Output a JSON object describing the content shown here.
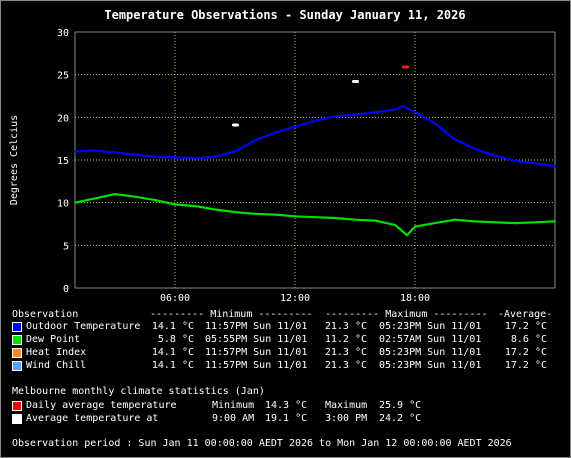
{
  "chart_data": {
    "type": "line",
    "title": "Temperature Observations - Sunday January 11, 2026",
    "ylabel": "Degrees Celcius",
    "xlabel": "",
    "ylim": [
      0,
      30
    ],
    "yticks": [
      0,
      5,
      10,
      15,
      20,
      25,
      30
    ],
    "x_unit": "hours",
    "xlim": [
      1,
      25
    ],
    "xtick_values": [
      6,
      12,
      18
    ],
    "xticks": [
      "06:00",
      "12:00",
      "18:00"
    ],
    "grid": true,
    "series": [
      {
        "name": "Outdoor Temperature",
        "color": "#0000ff",
        "x": [
          1,
          2,
          3,
          4,
          5,
          6,
          7,
          8,
          9,
          10,
          11,
          12,
          13,
          14,
          15,
          16,
          17,
          17.4,
          18,
          19,
          20,
          21,
          22,
          23,
          24,
          25
        ],
        "values": [
          16.0,
          16.1,
          15.9,
          15.6,
          15.4,
          15.3,
          15.2,
          15.4,
          16.0,
          17.3,
          18.2,
          18.9,
          19.6,
          20.1,
          20.3,
          20.6,
          20.9,
          21.3,
          20.6,
          19.3,
          17.4,
          16.3,
          15.5,
          14.9,
          14.6,
          14.3
        ]
      },
      {
        "name": "Dew Point",
        "color": "#00e000",
        "x": [
          1,
          2,
          3,
          4,
          5,
          6,
          7,
          8,
          9,
          10,
          11,
          12,
          13,
          14,
          15,
          16,
          17,
          17.6,
          18,
          19,
          20,
          21,
          22,
          23,
          24,
          25
        ],
        "values": [
          10.0,
          10.5,
          11.0,
          10.7,
          10.3,
          9.8,
          9.6,
          9.2,
          8.9,
          8.7,
          8.6,
          8.4,
          8.3,
          8.2,
          8.0,
          7.9,
          7.4,
          6.2,
          7.2,
          7.6,
          8.0,
          7.8,
          7.7,
          7.6,
          7.7,
          7.8
        ]
      }
    ],
    "average_markers": [
      {
        "name": "Average temperature",
        "color": "#ffffff",
        "x": 9,
        "value": 19.1
      },
      {
        "name": "Average temperature",
        "color": "#ffffff",
        "x": 15,
        "value": 24.2
      }
    ],
    "daily_average_markers": [
      {
        "name": "Daily average temperature",
        "color": "#ff2020",
        "x": 17.5,
        "value": 25.9
      }
    ]
  },
  "colors": {
    "plot_border": "#8a8a8a",
    "grid": "#a0d040",
    "outdoor": "#0000ff",
    "dew": "#00e000",
    "heat": "#ff8c1a",
    "wind": "#5aa0ff",
    "climate_red": "#ff0000",
    "climate_white": "#ffffff"
  },
  "table": {
    "header": {
      "observation": "Observation",
      "minimum": "--------- Minimum ---------",
      "maximum": "--------- Maximum ---------",
      "average": "-Average-"
    },
    "rows": [
      {
        "name": "Outdoor Temperature",
        "min": "14.1 °C",
        "min_time": "11:57PM Sun 11/01",
        "max": "21.3 °C",
        "max_time": "05:23PM Sun 11/01",
        "avg": "17.2 °C"
      },
      {
        "name": "Dew Point",
        "min": "5.8 °C",
        "min_time": "05:55PM Sun 11/01",
        "max": "11.2 °C",
        "max_time": "02:57AM Sun 11/01",
        "avg": "8.6 °C"
      },
      {
        "name": "Heat Index",
        "min": "14.1 °C",
        "min_time": "11:57PM Sun 11/01",
        "max": "21.3 °C",
        "max_time": "05:23PM Sun 11/01",
        "avg": "17.2 °C"
      },
      {
        "name": "Wind Chill",
        "min": "14.1 °C",
        "min_time": "11:57PM Sun 11/01",
        "max": "21.3 °C",
        "max_time": "05:23PM Sun 11/01",
        "avg": "17.2 °C"
      }
    ]
  },
  "climate": {
    "title": "Melbourne monthly climate statistics (Jan)",
    "daily": {
      "label": "Daily average temperature",
      "min_label": "Minimum",
      "min": "14.3 °C",
      "max_label": "Maximum",
      "max": "25.9 °C"
    },
    "avg": {
      "label": "Average temperature at",
      "t1": "9:00 AM",
      "v1": "19.1 °C",
      "t2": "3:00 PM",
      "v2": "24.2 °C"
    }
  },
  "period": "Observation period : Sun Jan 11 00:00:00 AEDT 2026 to Mon Jan 12 00:00:00 AEDT 2026"
}
